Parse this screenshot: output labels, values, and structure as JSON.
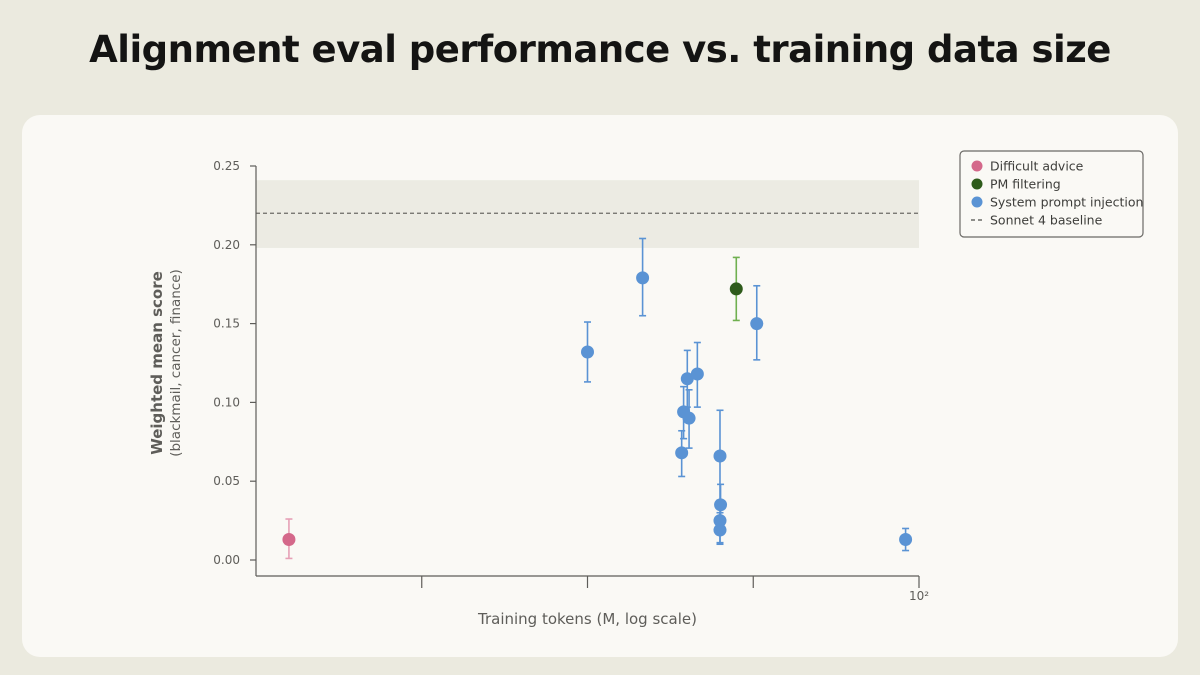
{
  "title": "Alignment eval performance vs. training data size",
  "chart_data": {
    "type": "scatter",
    "title": "Alignment eval performance vs. training data size",
    "xlabel": "Training tokens (M, log scale)",
    "ylabel": "Weighted mean score",
    "ylabel_sub": "(blackmail, cancer, finance)",
    "xscale": "log",
    "xlim": [
      0.01,
      100
    ],
    "ylim": [
      0,
      0.25
    ],
    "x_tick_label": "10²",
    "y_ticks": [
      {
        "v": 0.0,
        "label": "0.00"
      },
      {
        "v": 0.05,
        "label": "0.05"
      },
      {
        "v": 0.1,
        "label": "0.10"
      },
      {
        "v": 0.15,
        "label": "0.15"
      },
      {
        "v": 0.2,
        "label": "0.20"
      },
      {
        "v": 0.25,
        "label": "0.25"
      }
    ],
    "grid": false,
    "legend_position": "top-right",
    "baseline": {
      "name": "Sonnet 4 baseline",
      "value": 0.22,
      "band": [
        0.198,
        0.241
      ]
    },
    "series": [
      {
        "name": "Difficult advice",
        "color": "#d4688a",
        "err_color": "#e6a0b6",
        "points": [
          {
            "x": 0.0158,
            "y": 0.013,
            "err": [
              0.001,
              0.026
            ]
          }
        ]
      },
      {
        "name": "PM filtering",
        "color": "#2e5b1b",
        "err_color": "#6fb04f",
        "points": [
          {
            "x": 7.9,
            "y": 0.172,
            "err": [
              0.152,
              0.192
            ]
          }
        ]
      },
      {
        "name": "System prompt injection",
        "color": "#5a93d4",
        "err_color": "#5a93d4",
        "points": [
          {
            "x": 1.0,
            "y": 0.132,
            "err": [
              0.113,
              0.151
            ]
          },
          {
            "x": 2.15,
            "y": 0.179,
            "err": [
              0.155,
              0.204
            ]
          },
          {
            "x": 3.7,
            "y": 0.068,
            "err": [
              0.053,
              0.082
            ]
          },
          {
            "x": 3.8,
            "y": 0.094,
            "err": [
              0.077,
              0.11
            ]
          },
          {
            "x": 4.1,
            "y": 0.09,
            "err": [
              0.071,
              0.108
            ]
          },
          {
            "x": 4.0,
            "y": 0.115,
            "err": [
              0.097,
              0.133
            ]
          },
          {
            "x": 4.6,
            "y": 0.118,
            "err": [
              0.097,
              0.138
            ]
          },
          {
            "x": 6.3,
            "y": 0.066,
            "err": [
              0.036,
              0.095
            ]
          },
          {
            "x": 6.35,
            "y": 0.035,
            "err": [
              0.021,
              0.048
            ]
          },
          {
            "x": 6.3,
            "y": 0.025,
            "err": [
              0.011,
              0.038
            ]
          },
          {
            "x": 6.3,
            "y": 0.019,
            "err": [
              0.01,
              0.03
            ]
          },
          {
            "x": 10.5,
            "y": 0.15,
            "err": [
              0.127,
              0.174
            ]
          },
          {
            "x": 83.0,
            "y": 0.013,
            "err": [
              0.006,
              0.02
            ]
          }
        ]
      }
    ]
  }
}
